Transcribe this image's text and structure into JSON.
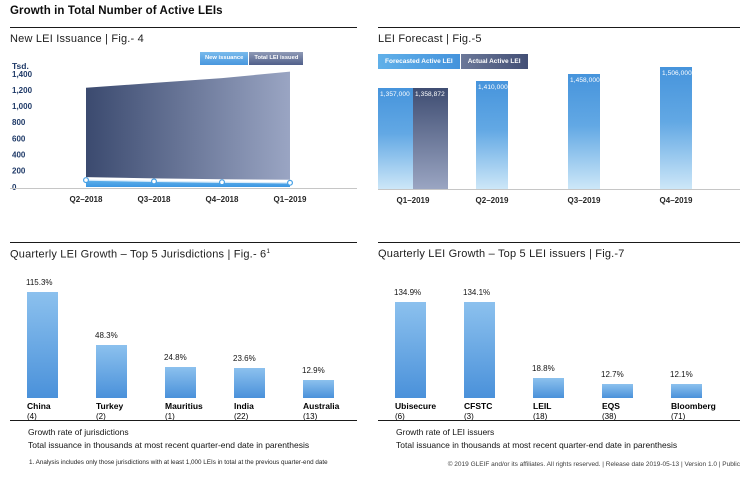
{
  "page": {
    "title": "Growth in Total Number of Active LEIs"
  },
  "footer": {
    "text": "© 2019 GLEIF and/or its affiliates. All rights reserved. | Release date 2019-05-13 | Version 1.0 | Public"
  },
  "colors": {
    "accent_light_blue": "#4897de",
    "accent_dark_navy": "#46547a",
    "band_blue": "#47a1e6",
    "axis_gray": "#c6c6c6",
    "navy_text": "#1f3a68"
  },
  "chart_data": [
    {
      "id": "fig4",
      "type": "area",
      "title": "New LEI Issuance | Fig.- 4",
      "ylabel": "Tsd.",
      "unit": "thousands",
      "categories": [
        "Q2–2018",
        "Q3–2018",
        "Q4–2018",
        "Q1–2019"
      ],
      "series": [
        {
          "name": "New issuance",
          "values": [
            85,
            70,
            60,
            52
          ]
        },
        {
          "name": "Total LEI issued",
          "values": [
            1230,
            1290,
            1350,
            1430
          ]
        }
      ],
      "legend": [
        "New issuance",
        "Total LEI issued"
      ],
      "legend_position": "top-right",
      "ylim": [
        0,
        1450
      ],
      "ytick_values": [
        1400,
        1200,
        1000,
        800,
        600,
        400,
        200,
        0
      ],
      "ytick_labels": [
        "1,400",
        "1,200",
        "1,000",
        "800",
        "600",
        "400",
        "200",
        "0"
      ],
      "grid": false
    },
    {
      "id": "fig5",
      "type": "bar",
      "title": "LEI Forecast | Fig.-5",
      "categories": [
        "Q1–2019",
        "Q2–2019",
        "Q3–2019",
        "Q4–2019"
      ],
      "series": [
        {
          "name": "Forecasted Active LEI",
          "values": [
            1357000,
            1410000,
            1458000,
            1506000
          ],
          "labels": [
            "1,357,000",
            "1,410,000",
            "1,458,000",
            "1,506,000"
          ]
        },
        {
          "name": "Actual Active LEI",
          "values": [
            1358872
          ],
          "labels": [
            "1,358,872"
          ],
          "category": "Q1–2019"
        }
      ],
      "legend": [
        "Forecasted Active LEI",
        "Actual Active LEI"
      ],
      "legend_position": "top-left",
      "grid": false,
      "y_axis_visible": false
    },
    {
      "id": "fig6",
      "type": "bar",
      "title": "Quarterly LEI Growth – Top 5 Jurisdictions | Fig.- 6",
      "title_sup": "1",
      "categories": [
        "China",
        "Turkey",
        "Mauritius",
        "India",
        "Australia"
      ],
      "category_counts": [
        "(4)",
        "(2)",
        "(1)",
        "(22)",
        "(13)"
      ],
      "values": [
        115.3,
        48.3,
        24.8,
        23.6,
        12.9
      ],
      "value_labels": [
        "115.3%",
        "48.3%",
        "24.8%",
        "23.6%",
        "12.9%"
      ],
      "notes": [
        "Growth rate of jurisdictions",
        "Total issuance in thousands at most recent quarter-end date in parenthesis"
      ],
      "footnote": "1. Analysis includes only those jurisdictions with at least 1,000 LEIs in total at the previous quarter-end date",
      "grid": false,
      "y_axis_visible": false
    },
    {
      "id": "fig7",
      "type": "bar",
      "title": "Quarterly LEI Growth – Top 5 LEI issuers | Fig.-7",
      "categories": [
        "Ubisecure",
        "CFSTC",
        "LEIL",
        "EQS",
        "Bloomberg"
      ],
      "category_counts": [
        "(6)",
        "(3)",
        "(18)",
        "(38)",
        "(71)"
      ],
      "values": [
        134.9,
        134.1,
        18.8,
        12.7,
        12.1
      ],
      "value_labels": [
        "134.9%",
        "134.1%",
        "18.8%",
        "12.7%",
        "12.1%"
      ],
      "notes": [
        "Growth rate of LEI issuers",
        "Total issuance in thousands at most recent quarter-end date in parenthesis"
      ],
      "grid": false,
      "y_axis_visible": false
    }
  ]
}
